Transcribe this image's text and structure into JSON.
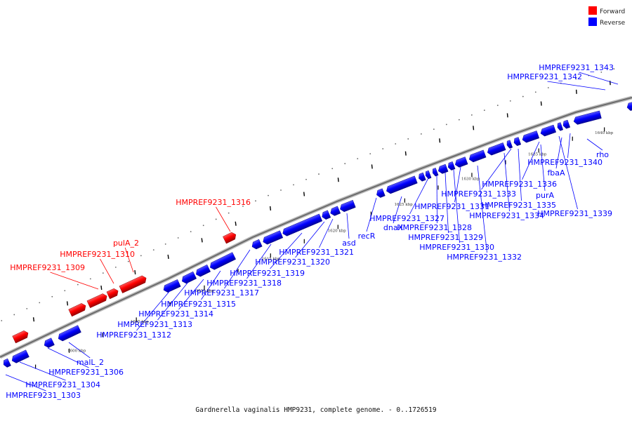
{
  "caption": "Gardnerella vaginalis HMP9231, complete genome. - 0..1726519",
  "legend": [
    {
      "label": "Forward",
      "color": "#ff0000"
    },
    {
      "label": "Reverse",
      "color": "#0000ff"
    }
  ],
  "colors": {
    "forward": "#ff0000",
    "reverse": "#0000ff",
    "backbone": "#888888"
  },
  "kbp_marks": [
    "1600 kbp",
    "1605 kbp",
    "1610 kbp",
    "1615 kbp",
    "1620 kbp",
    "1625 kbp",
    "1630 kbp",
    "1635 kbp",
    "1640 kbp"
  ],
  "labels": [
    {
      "text": "HMPREF9231_1343",
      "strand": "reverse"
    },
    {
      "text": "HMPREF9231_1342",
      "strand": "reverse"
    },
    {
      "text": "rho",
      "strand": "reverse"
    },
    {
      "text": "HMPREF9231_1340",
      "strand": "reverse"
    },
    {
      "text": "fbaA",
      "strand": "reverse"
    },
    {
      "text": "HMPREF9231_1336",
      "strand": "reverse"
    },
    {
      "text": "purA",
      "strand": "reverse"
    },
    {
      "text": "HMPREF9231_1333",
      "strand": "reverse"
    },
    {
      "text": "HMPREF9231_1335",
      "strand": "reverse"
    },
    {
      "text": "HMPREF9231_1339",
      "strand": "reverse"
    },
    {
      "text": "HMPREF9231_1334",
      "strand": "reverse"
    },
    {
      "text": "HMPREF9231_1331",
      "strand": "reverse"
    },
    {
      "text": "HMPREF9231_1327",
      "strand": "reverse"
    },
    {
      "text": "HMPREF9231_1328",
      "strand": "reverse"
    },
    {
      "text": "HMPREF9231_1329",
      "strand": "reverse"
    },
    {
      "text": "HMPREF9231_1330",
      "strand": "reverse"
    },
    {
      "text": "HMPREF9231_1332",
      "strand": "reverse"
    },
    {
      "text": "dnaX",
      "strand": "reverse"
    },
    {
      "text": "recR",
      "strand": "reverse"
    },
    {
      "text": "asd",
      "strand": "reverse"
    },
    {
      "text": "HMPREF9231_1321",
      "strand": "reverse"
    },
    {
      "text": "HMPREF9231_1320",
      "strand": "reverse"
    },
    {
      "text": "HMPREF9231_1319",
      "strand": "reverse"
    },
    {
      "text": "HMPREF9231_1318",
      "strand": "reverse"
    },
    {
      "text": "HMPREF9231_1317",
      "strand": "reverse"
    },
    {
      "text": "HMPREF9231_1315",
      "strand": "reverse"
    },
    {
      "text": "HMPREF9231_1314",
      "strand": "reverse"
    },
    {
      "text": "HMPREF9231_1313",
      "strand": "reverse"
    },
    {
      "text": "HMPREF9231_1312",
      "strand": "reverse"
    },
    {
      "text": "HMPREF9231_1316",
      "strand": "forward"
    },
    {
      "text": "pulA_2",
      "strand": "forward"
    },
    {
      "text": "HMPREF9231_1310",
      "strand": "forward"
    },
    {
      "text": "HMPREF9231_1309",
      "strand": "forward"
    },
    {
      "text": "malL_2",
      "strand": "reverse"
    },
    {
      "text": "HMPREF9231_1306",
      "strand": "reverse"
    },
    {
      "text": "HMPREF9231_1304",
      "strand": "reverse"
    },
    {
      "text": "HMPREF9231_1303",
      "strand": "reverse"
    }
  ]
}
